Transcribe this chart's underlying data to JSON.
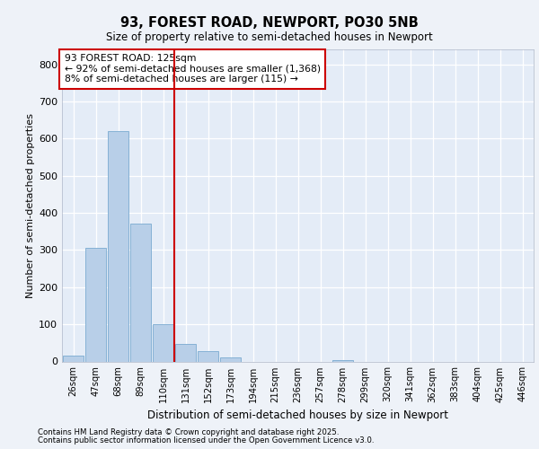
{
  "title1": "93, FOREST ROAD, NEWPORT, PO30 5NB",
  "title2": "Size of property relative to semi-detached houses in Newport",
  "xlabel": "Distribution of semi-detached houses by size in Newport",
  "ylabel": "Number of semi-detached properties",
  "categories": [
    "26sqm",
    "47sqm",
    "68sqm",
    "89sqm",
    "110sqm",
    "131sqm",
    "152sqm",
    "173sqm",
    "194sqm",
    "215sqm",
    "236sqm",
    "257sqm",
    "278sqm",
    "299sqm",
    "320sqm",
    "341sqm",
    "362sqm",
    "383sqm",
    "404sqm",
    "425sqm",
    "446sqm"
  ],
  "values": [
    15,
    305,
    620,
    370,
    100,
    47,
    27,
    10,
    0,
    0,
    0,
    0,
    3,
    0,
    0,
    0,
    0,
    0,
    0,
    0,
    0
  ],
  "bar_color": "#b8cfe8",
  "bar_edge_color": "#7aaad0",
  "vline_color": "#cc0000",
  "annotation_title": "93 FOREST ROAD: 125sqm",
  "annotation_line1": "← 92% of semi-detached houses are smaller (1,368)",
  "annotation_line2": "8% of semi-detached houses are larger (115) →",
  "annotation_box_color": "#cc0000",
  "footer1": "Contains HM Land Registry data © Crown copyright and database right 2025.",
  "footer2": "Contains public sector information licensed under the Open Government Licence v3.0.",
  "ylim": [
    0,
    840
  ],
  "yticks": [
    0,
    100,
    200,
    300,
    400,
    500,
    600,
    700,
    800
  ],
  "bg_color": "#eef2f8",
  "plot_bg": "#e4ecf7"
}
